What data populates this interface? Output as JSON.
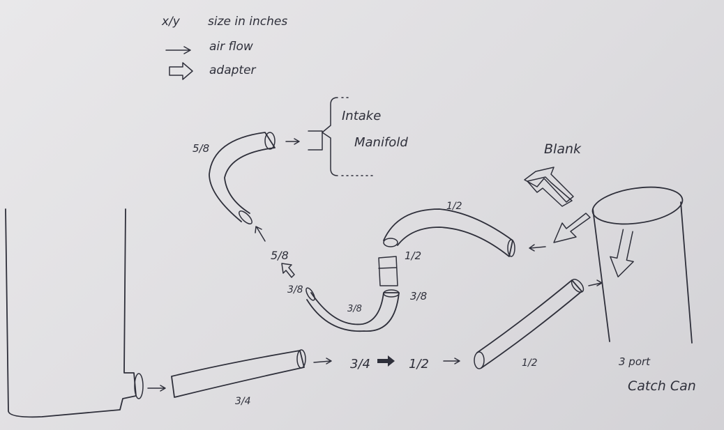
{
  "legend": {
    "size_symbol": "x/y",
    "size_text": "size in inches",
    "arrow_text": "air flow",
    "adapter_text": "adapter"
  },
  "labels": {
    "intake_line1": "Intake",
    "intake_line2": "Manifold",
    "blank": "Blank",
    "catch_can_line1": "3 port",
    "catch_can_line2": "Catch Can"
  },
  "hose_sizes": {
    "bottom_hose": "3/4",
    "adapter_in": "3/4",
    "adapter_out": "1/2",
    "right_hose": "1/2",
    "top_right_hose_a": "1/2",
    "top_right_hose_b": "1/2",
    "adapter_side": "3/8",
    "u_hose": "3/8",
    "u_hose_end": "3/8",
    "riser": "5/8",
    "top_left_hose": "5/8"
  }
}
